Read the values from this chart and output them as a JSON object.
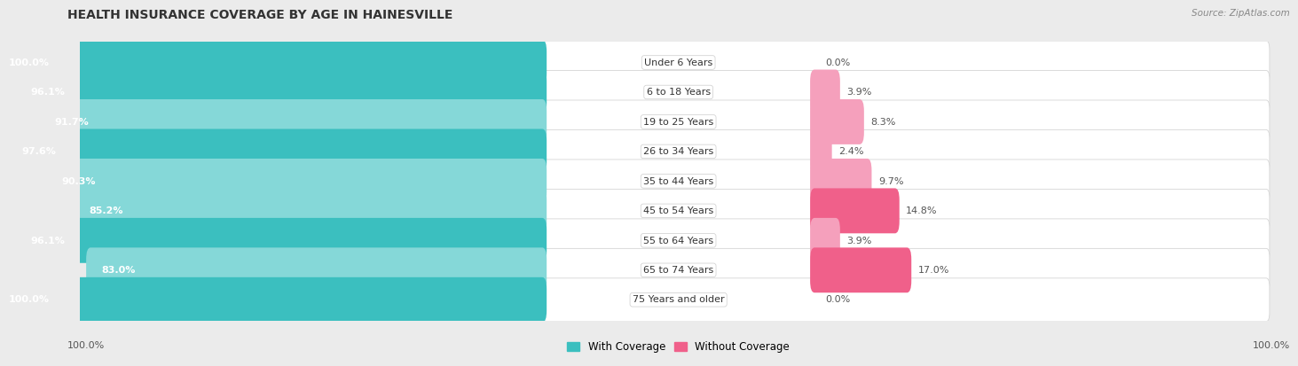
{
  "title": "HEALTH INSURANCE COVERAGE BY AGE IN HAINESVILLE",
  "source": "Source: ZipAtlas.com",
  "categories": [
    "Under 6 Years",
    "6 to 18 Years",
    "19 to 25 Years",
    "26 to 34 Years",
    "35 to 44 Years",
    "45 to 54 Years",
    "55 to 64 Years",
    "65 to 74 Years",
    "75 Years and older"
  ],
  "with_coverage": [
    100.0,
    96.1,
    91.7,
    97.6,
    90.3,
    85.2,
    96.1,
    83.0,
    100.0
  ],
  "without_coverage": [
    0.0,
    3.9,
    8.3,
    2.4,
    9.7,
    14.8,
    3.9,
    17.0,
    0.0
  ],
  "color_with_dark": "#3bbfbf",
  "color_with_light": "#85d8d8",
  "color_without_dark": "#f0608a",
  "color_without_light": "#f5a0bc",
  "bg_color": "#ebebeb",
  "row_bg": "#f7f7f7",
  "title_fontsize": 10,
  "label_fontsize": 8,
  "cat_fontsize": 8,
  "tick_fontsize": 8,
  "legend_fontsize": 8.5,
  "with_cov_threshold": 95.0,
  "without_cov_threshold": 10.0
}
